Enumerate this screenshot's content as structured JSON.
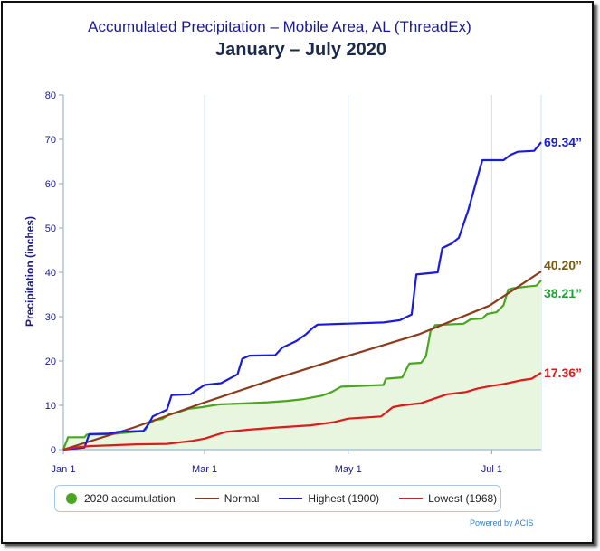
{
  "title": "Accumulated Precipitation – Mobile Area, AL (ThreadEx)",
  "subtitle": "January – July 2020",
  "credit": "Powered by ACIS",
  "chart_data": {
    "type": "line",
    "ylabel": "Precipitation (inches)",
    "xlabel": "",
    "ylim": [
      0,
      80
    ],
    "yticks": [
      "0",
      "10",
      "20",
      "30",
      "40",
      "50",
      "60",
      "70",
      "80"
    ],
    "x_range": [
      "2020-01-01",
      "2020-07-15"
    ],
    "xticks": [
      {
        "label": "Jan 1",
        "date": "2020-01-01"
      },
      {
        "label": "Mar 1",
        "date": "2020-03-01"
      },
      {
        "label": "May 1",
        "date": "2020-05-01"
      },
      {
        "label": "Jul 1",
        "date": "2020-07-01"
      }
    ],
    "grid": "vertical-only",
    "legend_position": "bottom",
    "series": [
      {
        "name": "2020 accumulation",
        "color": "#4aa520",
        "fill": "#e8f5df",
        "end_label": "38.21”",
        "points": [
          [
            "2020-01-01",
            0
          ],
          [
            "2020-01-03",
            2.8
          ],
          [
            "2020-01-10",
            2.8
          ],
          [
            "2020-01-11",
            3.4
          ],
          [
            "2020-01-21",
            3.5
          ],
          [
            "2020-02-04",
            4.2
          ],
          [
            "2020-02-05",
            4.6
          ],
          [
            "2020-02-06",
            5.8
          ],
          [
            "2020-02-09",
            6.7
          ],
          [
            "2020-02-12",
            6.9
          ],
          [
            "2020-02-15",
            8.0
          ],
          [
            "2020-02-18",
            8.3
          ],
          [
            "2020-02-23",
            9.2
          ],
          [
            "2020-02-29",
            9.6
          ],
          [
            "2020-03-01",
            9.7
          ],
          [
            "2020-03-07",
            10.2
          ],
          [
            "2020-03-20",
            10.5
          ],
          [
            "2020-03-28",
            10.7
          ],
          [
            "2020-04-05",
            11.0
          ],
          [
            "2020-04-12",
            11.4
          ],
          [
            "2020-04-20",
            12.2
          ],
          [
            "2020-04-24",
            13.0
          ],
          [
            "2020-04-28",
            14.2
          ],
          [
            "2020-05-16",
            14.6
          ],
          [
            "2020-05-17",
            16.0
          ],
          [
            "2020-05-24",
            16.3
          ],
          [
            "2020-05-27",
            19.4
          ],
          [
            "2020-06-01",
            19.6
          ],
          [
            "2020-06-03",
            21.0
          ],
          [
            "2020-06-05",
            26.8
          ],
          [
            "2020-06-07",
            28.1
          ],
          [
            "2020-06-19",
            28.4
          ],
          [
            "2020-06-22",
            29.4
          ],
          [
            "2020-06-27",
            29.6
          ],
          [
            "2020-06-29",
            30.6
          ],
          [
            "2020-07-03",
            31.0
          ],
          [
            "2020-07-06",
            32.6
          ],
          [
            "2020-07-08",
            36.1
          ],
          [
            "2020-07-10",
            36.4
          ],
          [
            "2020-07-16",
            36.8
          ],
          [
            "2020-07-20",
            37.0
          ],
          [
            "2020-07-22",
            38.21
          ]
        ]
      },
      {
        "name": "Normal",
        "color": "#8b3a1a",
        "end_label": "40.20”",
        "points": [
          [
            "2020-01-01",
            0
          ],
          [
            "2020-01-31",
            5.0
          ],
          [
            "2020-02-29",
            10.5
          ],
          [
            "2020-03-31",
            16.0
          ],
          [
            "2020-04-30",
            21.0
          ],
          [
            "2020-05-31",
            26.0
          ],
          [
            "2020-06-30",
            32.5
          ],
          [
            "2020-07-22",
            40.2
          ]
        ]
      },
      {
        "name": "Highest (1900)",
        "color": "#1a1ae0",
        "end_label": "69.34”",
        "points": [
          [
            "2020-01-01",
            0
          ],
          [
            "2020-01-10",
            0.5
          ],
          [
            "2020-01-12",
            3.5
          ],
          [
            "2020-01-20",
            3.6
          ],
          [
            "2020-01-24",
            4.0
          ],
          [
            "2020-02-04",
            4.2
          ],
          [
            "2020-02-06",
            5.6
          ],
          [
            "2020-02-08",
            7.5
          ],
          [
            "2020-02-14",
            9.0
          ],
          [
            "2020-02-16",
            12.3
          ],
          [
            "2020-02-24",
            12.5
          ],
          [
            "2020-02-26",
            13.2
          ],
          [
            "2020-03-01",
            14.6
          ],
          [
            "2020-03-08",
            15.0
          ],
          [
            "2020-03-15",
            17.0
          ],
          [
            "2020-03-17",
            20.5
          ],
          [
            "2020-03-20",
            21.2
          ],
          [
            "2020-03-31",
            21.3
          ],
          [
            "2020-04-03",
            23.0
          ],
          [
            "2020-04-09",
            24.5
          ],
          [
            "2020-04-13",
            26.0
          ],
          [
            "2020-04-16",
            27.5
          ],
          [
            "2020-04-18",
            28.2
          ],
          [
            "2020-05-16",
            28.7
          ],
          [
            "2020-05-23",
            29.2
          ],
          [
            "2020-05-28",
            30.5
          ],
          [
            "2020-05-30",
            39.5
          ],
          [
            "2020-06-08",
            40.0
          ],
          [
            "2020-06-10",
            45.5
          ],
          [
            "2020-06-14",
            46.5
          ],
          [
            "2020-06-17",
            47.8
          ],
          [
            "2020-06-21",
            54.0
          ],
          [
            "2020-06-26",
            63.5
          ],
          [
            "2020-06-27",
            65.3
          ],
          [
            "2020-07-06",
            65.3
          ],
          [
            "2020-07-09",
            66.5
          ],
          [
            "2020-07-12",
            67.2
          ],
          [
            "2020-07-19",
            67.4
          ],
          [
            "2020-07-22",
            69.34
          ]
        ]
      },
      {
        "name": "Lowest (1968)",
        "color": "#e01a1a",
        "end_label": "17.36”",
        "points": [
          [
            "2020-01-01",
            0
          ],
          [
            "2020-01-06",
            0.5
          ],
          [
            "2020-01-12",
            0.8
          ],
          [
            "2020-01-22",
            1.0
          ],
          [
            "2020-02-01",
            1.2
          ],
          [
            "2020-02-14",
            1.3
          ],
          [
            "2020-02-25",
            2.0
          ],
          [
            "2020-03-01",
            2.5
          ],
          [
            "2020-03-04",
            3.0
          ],
          [
            "2020-03-10",
            4.0
          ],
          [
            "2020-03-20",
            4.5
          ],
          [
            "2020-04-01",
            5.0
          ],
          [
            "2020-04-15",
            5.5
          ],
          [
            "2020-04-25",
            6.2
          ],
          [
            "2020-05-01",
            7.0
          ],
          [
            "2020-05-15",
            7.5
          ],
          [
            "2020-05-20",
            9.6
          ],
          [
            "2020-05-24",
            10.0
          ],
          [
            "2020-06-01",
            10.5
          ],
          [
            "2020-06-12",
            12.5
          ],
          [
            "2020-06-20",
            13.0
          ],
          [
            "2020-06-25",
            13.8
          ],
          [
            "2020-06-30",
            14.3
          ],
          [
            "2020-07-06",
            14.8
          ],
          [
            "2020-07-14",
            15.7
          ],
          [
            "2020-07-18",
            16.0
          ],
          [
            "2020-07-22",
            17.36
          ]
        ]
      }
    ]
  }
}
